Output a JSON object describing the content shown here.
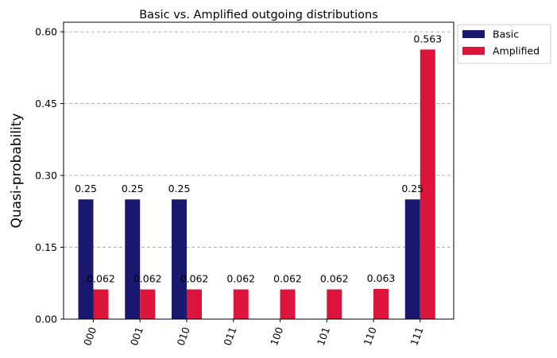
{
  "chart_data": {
    "type": "bar",
    "title": "Basic vs. Amplified outgoing distributions",
    "xlabel": "",
    "ylabel": "Quasi-probability",
    "categories": [
      "000",
      "001",
      "010",
      "011",
      "100",
      "101",
      "110",
      "111"
    ],
    "series": [
      {
        "name": "Basic",
        "color": "#191970",
        "values": [
          0.25,
          0.25,
          0.25,
          0,
          0,
          0,
          0,
          0.25
        ],
        "labels": [
          "0.25",
          "0.25",
          "0.25",
          "",
          "",
          "",
          "",
          "0.25"
        ]
      },
      {
        "name": "Amplified",
        "color": "#DC143C",
        "values": [
          0.062,
          0.062,
          0.062,
          0.062,
          0.062,
          0.062,
          0.063,
          0.563
        ],
        "labels": [
          "0.062",
          "0.062",
          "0.062",
          "0.062",
          "0.062",
          "0.062",
          "0.063",
          "0.563"
        ]
      }
    ],
    "ylim": [
      0,
      0.62
    ],
    "yticks": [
      0.0,
      0.15,
      0.3,
      0.45,
      0.6
    ],
    "ytick_labels": [
      "0.00",
      "0.15",
      "0.30",
      "0.45",
      "0.60"
    ],
    "grid": "y-dashed",
    "legend": "outside-top-right"
  }
}
